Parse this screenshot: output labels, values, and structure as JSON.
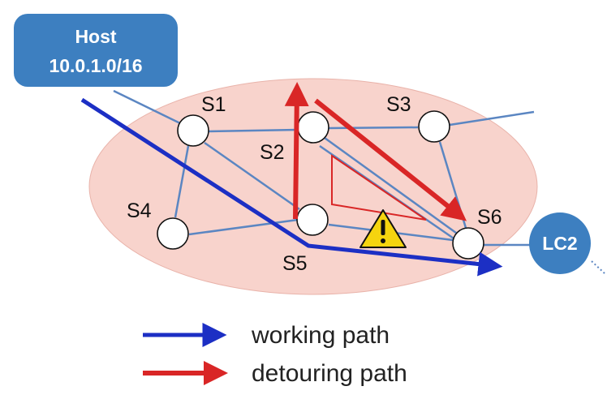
{
  "host": {
    "line1": "Host",
    "line2": "10.0.1.0/16"
  },
  "controller": {
    "label": "LC2"
  },
  "switches": {
    "s1": "S1",
    "s2": "S2",
    "s3": "S3",
    "s4": "S4",
    "s5": "S5",
    "s6": "S6"
  },
  "legend": {
    "working": "working path",
    "detouring": "detouring path"
  },
  "colors": {
    "region": "#f8d3cc",
    "link": "#5b86c2",
    "working_path": "#1c2fc4",
    "detouring_path": "#d92626",
    "host_box": "#3d7fc0",
    "warning": "#f5d40f"
  },
  "icons": {
    "failure": "warning-icon"
  }
}
